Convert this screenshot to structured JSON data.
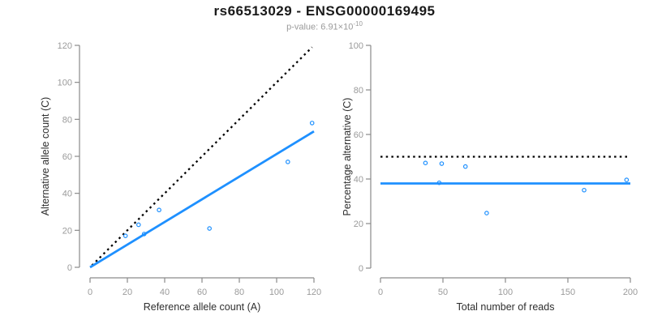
{
  "header": {
    "title": "rs66513029 - ENSG00000169495",
    "subtitle_prefix": "p-value: 6.91×10",
    "subtitle_exponent": "-10"
  },
  "colors": {
    "accent_blue": "#1E90FF",
    "line_black": "#000000",
    "axis_line_gray": "#8a8a8a",
    "tick_label_gray": "#9a9a9a",
    "axis_title_color": "#2e2e2e",
    "title_color": "#1a1a1a",
    "subtitle_gray": "#9a9a9a",
    "background": "#ffffff"
  },
  "chart_data": [
    {
      "type": "scatter",
      "name": "allele-counts",
      "xlabel": "Reference allele count (A)",
      "ylabel": "Alternative allele count (C)",
      "xlim": [
        0,
        120
      ],
      "ylim": [
        0,
        120
      ],
      "xticks": [
        0,
        20,
        40,
        60,
        80,
        100,
        120
      ],
      "yticks": [
        0,
        20,
        40,
        60,
        80,
        100,
        120
      ],
      "grid": false,
      "legend": false,
      "points": [
        [
          19,
          17
        ],
        [
          26,
          23
        ],
        [
          29,
          18
        ],
        [
          37,
          31
        ],
        [
          64,
          21
        ],
        [
          106,
          57
        ],
        [
          119,
          78
        ]
      ],
      "lines": [
        {
          "name": "identity-dotted-line",
          "style": "dotted",
          "color": "black",
          "x1": 1,
          "y1": 1,
          "x2": 119,
          "y2": 119
        },
        {
          "name": "fit-line",
          "style": "solid",
          "color": "blue",
          "x1": 0,
          "y1": 0,
          "x2": 120,
          "y2": 73.5
        }
      ]
    },
    {
      "type": "scatter",
      "name": "percentage-alternative",
      "xlabel": "Total number of reads",
      "ylabel": "Percentage alternative (C)",
      "xlim": [
        0,
        200
      ],
      "ylim": [
        0,
        100
      ],
      "xticks": [
        0,
        50,
        100,
        150,
        200
      ],
      "yticks": [
        0,
        20,
        40,
        60,
        80,
        100
      ],
      "grid": false,
      "legend": false,
      "points": [
        [
          36,
          47.2
        ],
        [
          49,
          46.9
        ],
        [
          47,
          38.3
        ],
        [
          68,
          45.6
        ],
        [
          85,
          24.7
        ],
        [
          163,
          35.0
        ],
        [
          197,
          39.6
        ]
      ],
      "lines": [
        {
          "name": "fifty-percent-dotted-line",
          "style": "dotted",
          "color": "black",
          "x1": 0,
          "y1": 50,
          "x2": 200,
          "y2": 50
        },
        {
          "name": "mean-percentage-line",
          "style": "solid",
          "color": "blue",
          "x1": 0,
          "y1": 38,
          "x2": 200,
          "y2": 38
        }
      ]
    }
  ]
}
